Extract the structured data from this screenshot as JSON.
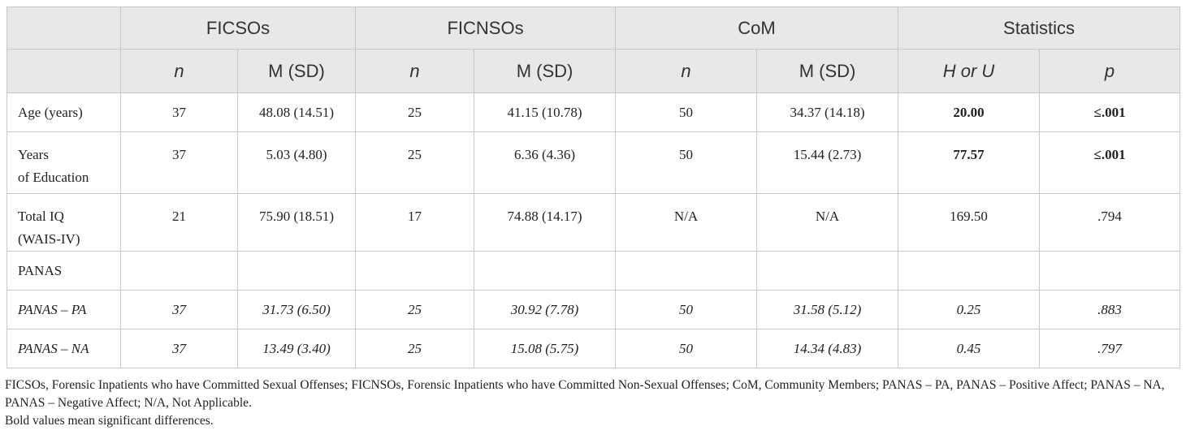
{
  "header": {
    "groups": [
      "FICSOs",
      "FICNSOs",
      "CoM",
      "Statistics"
    ],
    "subheaders": [
      "n",
      "M (SD)",
      "n",
      "M (SD)",
      "n",
      "M (SD)",
      "H or U",
      "p"
    ],
    "italic_subheaders": [
      true,
      false,
      true,
      false,
      true,
      false,
      true,
      true
    ]
  },
  "table": {
    "rows": [
      {
        "label": "Age (years)",
        "cells": [
          "37",
          "48.08 (14.51)",
          "25",
          "41.15 (10.78)",
          "50",
          "34.37 (14.18)",
          "20.00",
          "≤.001"
        ],
        "bold_stats": true,
        "italic": false
      },
      {
        "label": "Years\nof Education",
        "cells": [
          "37",
          "5.03 (4.80)",
          "25",
          "6.36 (4.36)",
          "50",
          "15.44 (2.73)",
          "77.57",
          "≤.001"
        ],
        "bold_stats": true,
        "italic": false
      },
      {
        "label": "Total IQ\n(WAIS-IV)",
        "cells": [
          "21",
          "75.90 (18.51)",
          "17",
          "74.88 (14.17)",
          "N/A",
          "N/A",
          "169.50",
          ".794"
        ],
        "bold_stats": false,
        "italic": false
      },
      {
        "label": "PANAS",
        "cells": [],
        "bold_stats": false,
        "italic": false
      },
      {
        "label": "PANAS – PA",
        "cells": [
          "37",
          "31.73 (6.50)",
          "25",
          "30.92 (7.78)",
          "50",
          "31.58 (5.12)",
          "0.25",
          ".883"
        ],
        "bold_stats": false,
        "italic": true
      },
      {
        "label": "PANAS – NA",
        "cells": [
          "37",
          "13.49 (3.40)",
          "25",
          "15.08 (5.75)",
          "50",
          "14.34 (4.83)",
          "0.45",
          ".797"
        ],
        "bold_stats": false,
        "italic": true
      }
    ]
  },
  "notes": [
    "FICSOs, Forensic Inpatients who have Committed Sexual Offenses; FICNSOs, Forensic Inpatients who have Committed Non-Sexual Offenses; CoM, Community Members; PANAS – PA, PANAS – Positive Affect; PANAS – NA, PANAS – Negative Affect; N/A, Not Applicable.",
    "Bold values mean significant differences."
  ]
}
